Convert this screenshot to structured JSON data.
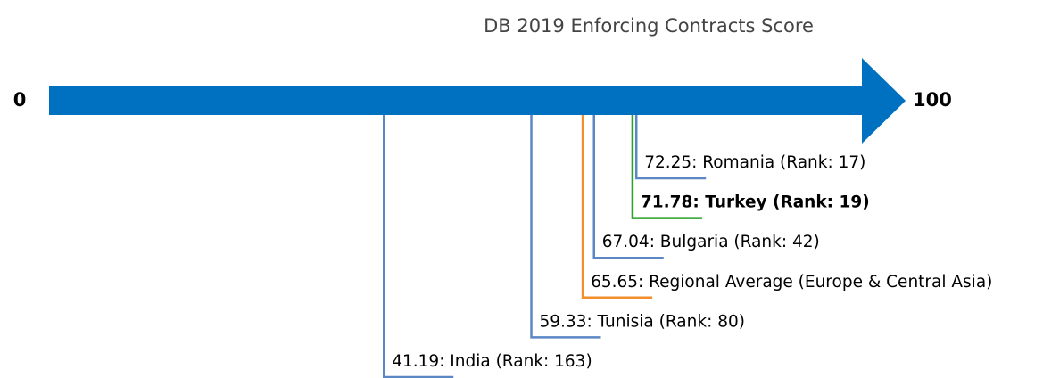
{
  "chart_data": {
    "type": "number-line",
    "title": "DB 2019 Enforcing Contracts Score",
    "xlim": [
      0,
      100
    ],
    "xticks": [
      0,
      100
    ],
    "axis_color": "#0070c0",
    "values": [
      72.25,
      71.78,
      67.04,
      65.65,
      59.33,
      41.19
    ],
    "value_labels": [
      "72.25: Romania (Rank: 17)",
      "71.78: Turkey (Rank: 19)",
      "67.04: Bulgaria (Rank: 42)",
      "65.65: Regional Average (Europe & Central Asia)",
      "59.33: Tunisia (Rank: 80)",
      "41.19: India (Rank: 163)"
    ],
    "colors": [
      "#5b87c5",
      "#2ca02c",
      "#5b87c5",
      "#f28e2b",
      "#5b87c5",
      "#5b87c5"
    ],
    "highlight": 1
  }
}
